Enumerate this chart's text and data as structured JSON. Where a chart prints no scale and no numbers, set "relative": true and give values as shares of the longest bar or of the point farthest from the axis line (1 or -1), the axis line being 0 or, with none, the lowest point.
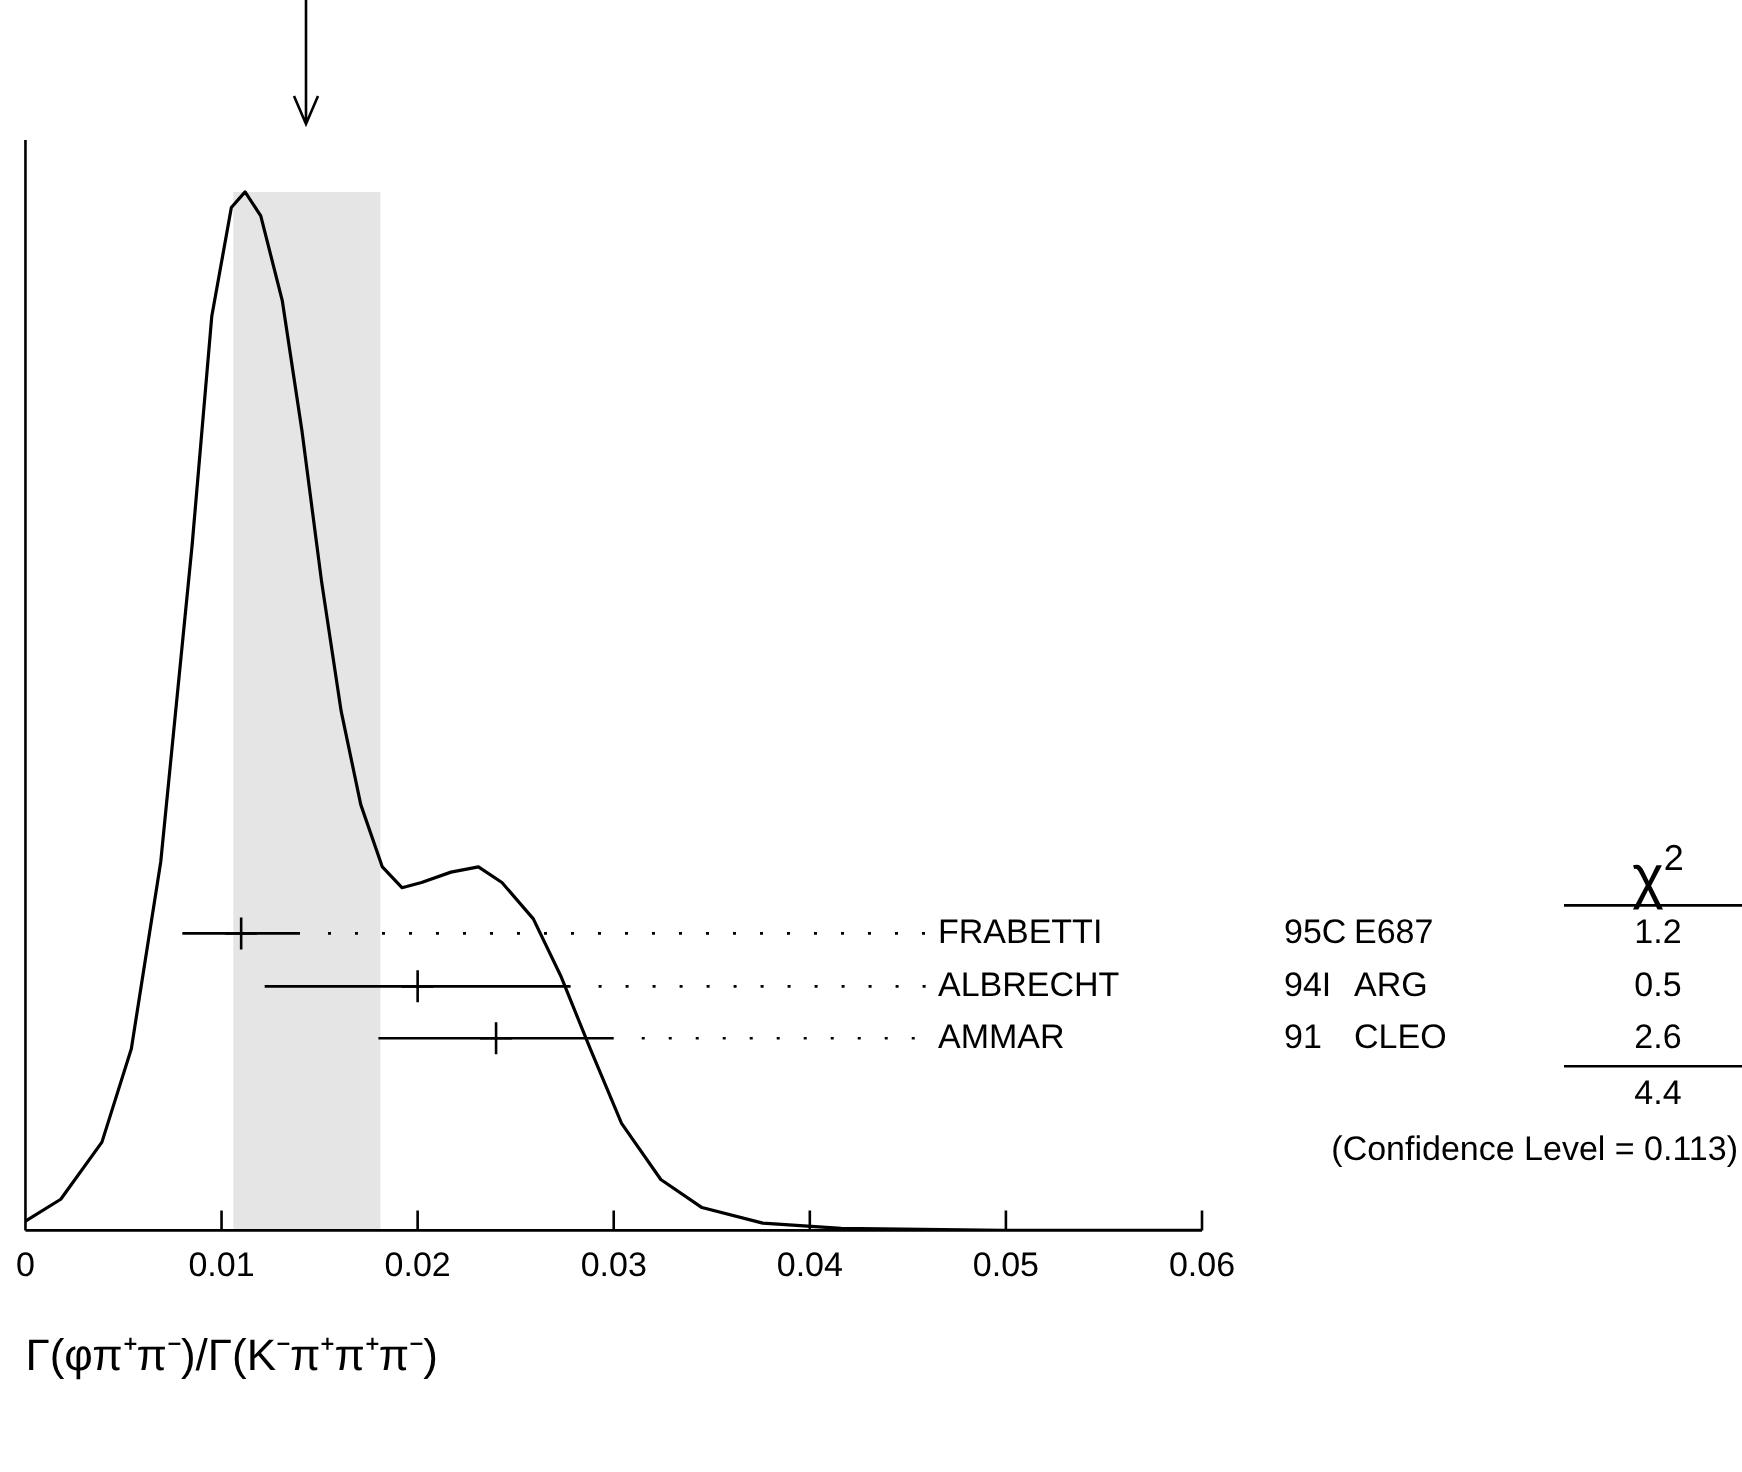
{
  "chart_data": {
    "type": "line",
    "xlabel": "Γ(φπ⁺π⁻)/Γ(K⁻π⁺π⁺π⁻)",
    "relative": true,
    "xlim": [
      0,
      0.06
    ],
    "xticks": [
      0,
      0.01,
      0.02,
      0.03,
      0.04,
      0.05,
      0.06
    ],
    "grid": false,
    "legend": false,
    "marker": "none",
    "series": [
      {
        "type": "line",
        "color": "#000000",
        "x": [
          0,
          0.0018,
          0.0039,
          0.0054,
          0.0069,
          0.0085,
          0.0095,
          0.0105,
          0.0112,
          0.012,
          0.0131,
          0.0141,
          0.0151,
          0.0161,
          0.0171,
          0.0182,
          0.0192,
          0.0202,
          0.0217,
          0.0231,
          0.0243,
          0.0259,
          0.0273,
          0.0288,
          0.0304,
          0.0324,
          0.0345,
          0.0376,
          0.0416,
          0.0498,
          0.06
        ],
        "values": [
          0.009,
          0.03,
          0.085,
          0.175,
          0.355,
          0.66,
          0.88,
          0.985,
          1,
          0.977,
          0.895,
          0.77,
          0.625,
          0.5,
          0.41,
          0.35,
          0.33,
          0.335,
          0.345,
          0.35,
          0.335,
          0.3,
          0.245,
          0.175,
          0.103,
          0.049,
          0.022,
          0.007,
          0.002,
          0,
          0
        ]
      },
      {
        "type": "scatter",
        "name": "FRABETTI",
        "color": "#000000",
        "marker": "cross",
        "x": [
          0.011
        ],
        "values": [
          0.286
        ],
        "xerrors": [
          0.003
        ]
      },
      {
        "type": "scatter",
        "name": "ALBRECHT",
        "color": "#000000",
        "marker": "cross",
        "x": [
          0.02
        ],
        "values": [
          0.235
        ],
        "xerrors": [
          0.0078
        ]
      },
      {
        "type": "scatter",
        "name": "AMMAR",
        "color": "#000000",
        "marker": "cross",
        "x": [
          0.024
        ],
        "values": [
          0.185
        ],
        "xerrors": [
          0.006
        ]
      }
    ],
    "bands": [
      {
        "axis": "x",
        "from": 0.0106,
        "to": 0.0181,
        "color": "#e5e5e5"
      }
    ],
    "annotations": [
      "χ$^{2}$",
      "95C",
      "E687",
      "1.2",
      "94I",
      "ARG",
      "0.5",
      "91",
      "CLEO",
      "2.6",
      "4.4",
      "(Confidence Level = 0.113)"
    ]
  }
}
